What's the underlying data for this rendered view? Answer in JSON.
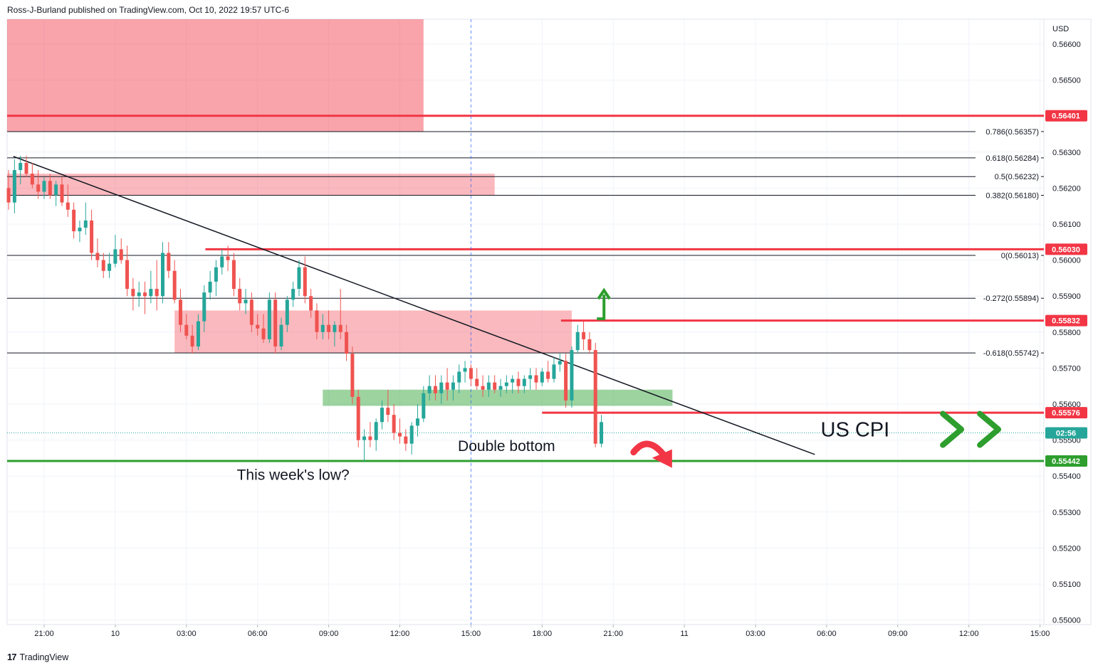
{
  "header": {
    "attribution": "Ross-J-Burland published on TradingView.com, Oct 10, 2022 19:57 UTC-6"
  },
  "footer": {
    "brand": "TradingView",
    "brand_mark": "17"
  },
  "colors": {
    "up": "#26a69a",
    "down": "#ef5350",
    "red_line": "#f23645",
    "green_line": "#2e9e2e",
    "red_zone": "rgba(242,54,69,0.45)",
    "pink_zone": "rgba(242,54,69,0.35)",
    "green_zone": "rgba(76,175,80,0.55)"
  },
  "chart_data": {
    "type": "candlestick",
    "currency": "USD",
    "price_axis": {
      "range": [
        0.5497,
        0.5671
      ],
      "ticks": [
        "0.56600",
        "0.56500",
        "0.56300",
        "0.56200",
        "0.56100",
        "0.56000",
        "0.55900",
        "0.55800",
        "0.55700",
        "0.55600",
        "0.55500",
        "0.55400",
        "0.55300",
        "0.55200",
        "0.55100",
        "0.55000"
      ]
    },
    "time_axis": {
      "ticks": [
        {
          "label": "21:00",
          "t": -3
        },
        {
          "label": "10",
          "t": 0
        },
        {
          "label": "03:00",
          "t": 3
        },
        {
          "label": "06:00",
          "t": 6
        },
        {
          "label": "09:00",
          "t": 9
        },
        {
          "label": "12:00",
          "t": 12
        },
        {
          "label": "15:00",
          "t": 15
        },
        {
          "label": "18:00",
          "t": 18
        },
        {
          "label": "21:00",
          "t": 21
        },
        {
          "label": "11",
          "t": 24
        },
        {
          "label": "03:00",
          "t": 27
        },
        {
          "label": "06:00",
          "t": 30
        },
        {
          "label": "09:00",
          "t": 33
        },
        {
          "label": "12:00",
          "t": 36
        },
        {
          "label": "15:00",
          "t": 39
        }
      ]
    },
    "price_labels": [
      {
        "value": 0.56401,
        "text": "0.56401",
        "color": "#f23645"
      },
      {
        "value": 0.5603,
        "text": "0.56030",
        "color": "#f23645"
      },
      {
        "value": 0.55832,
        "text": "0.55832",
        "color": "#f23645"
      },
      {
        "value": 0.55576,
        "text": "0.55576",
        "color": "#f23645"
      },
      {
        "value": 0.5552,
        "text": "02:56",
        "color": "#26a69a"
      },
      {
        "value": 0.55442,
        "text": "0.55442",
        "color": "#2e9e2e"
      }
    ],
    "fib_levels": [
      {
        "value": 0.56357,
        "text": "0.786(0.56357)"
      },
      {
        "value": 0.56284,
        "text": "0.618(0.56284)"
      },
      {
        "value": 0.56232,
        "text": "0.5(0.56232)"
      },
      {
        "value": 0.5618,
        "text": "0.382(0.56180)"
      },
      {
        "value": 0.56013,
        "text": "0(0.56013)"
      },
      {
        "value": 0.55894,
        "text": "-0.272(0.55894)"
      },
      {
        "value": 0.55742,
        "text": "-0.618(0.55742)"
      }
    ],
    "zones": [
      {
        "t0": -4.6,
        "t1": 13.0,
        "p0": 0.5671,
        "p1": 0.56357,
        "fill": "red_zone"
      },
      {
        "t0": -4.6,
        "t1": 16.0,
        "p0": 0.5624,
        "p1": 0.5618,
        "fill": "pink_zone"
      },
      {
        "t0": 2.5,
        "t1": 19.25,
        "p0": 0.5586,
        "p1": 0.55742,
        "fill": "pink_zone"
      },
      {
        "t0": 8.75,
        "t1": 23.5,
        "p0": 0.5564,
        "p1": 0.55595,
        "fill": "green_zone"
      }
    ],
    "horizontal_lines": [
      {
        "value": 0.56401,
        "t0": -4.6,
        "t1": 41.0,
        "color": "red_line",
        "width": 3
      },
      {
        "value": 0.5603,
        "t0": 3.8,
        "t1": 41.0,
        "color": "red_line",
        "width": 3
      },
      {
        "value": 0.55832,
        "t0": 18.8,
        "t1": 41.0,
        "color": "red_line",
        "width": 3
      },
      {
        "value": 0.55576,
        "t0": 18.0,
        "t1": 41.0,
        "color": "red_line",
        "width": 3
      },
      {
        "value": 0.55442,
        "t0": -4.6,
        "t1": 41.0,
        "color": "green_line",
        "width": 3
      }
    ],
    "trendline": {
      "t0": -4.3,
      "p0": 0.56288,
      "t1": 29.5,
      "p1": 0.5546
    },
    "session_marker_t": 15.0,
    "last_price": 0.5552,
    "annotations": [
      {
        "text": "Double bottom",
        "t": 16.5,
        "p": 0.5547,
        "size": 21,
        "key": "double_bottom"
      },
      {
        "text": "This week's low?",
        "t": 7.5,
        "p": 0.5539,
        "size": 21,
        "key": "weeks_low"
      },
      {
        "text": "US CPI",
        "t": 31.2,
        "p": 0.5551,
        "size": 29,
        "key": "us_cpi"
      }
    ],
    "candles": [
      [
        -4.5,
        0.562,
        0.5625,
        0.5614,
        0.5616
      ],
      [
        -4.25,
        0.5616,
        0.5628,
        0.5613,
        0.5625
      ],
      [
        -4.0,
        0.5625,
        0.5629,
        0.5621,
        0.5627
      ],
      [
        -3.75,
        0.5627,
        0.5629,
        0.5623,
        0.5624
      ],
      [
        -3.5,
        0.5624,
        0.5627,
        0.562,
        0.5621
      ],
      [
        -3.25,
        0.5621,
        0.5625,
        0.5617,
        0.5619
      ],
      [
        -3.0,
        0.5619,
        0.5623,
        0.5617,
        0.5622
      ],
      [
        -2.75,
        0.5622,
        0.5624,
        0.5617,
        0.5618
      ],
      [
        -2.5,
        0.5618,
        0.5622,
        0.5615,
        0.5621
      ],
      [
        -2.25,
        0.5621,
        0.5623,
        0.5615,
        0.5616
      ],
      [
        -2.0,
        0.5616,
        0.5621,
        0.5612,
        0.5614
      ],
      [
        -1.75,
        0.5614,
        0.5616,
        0.5606,
        0.5608
      ],
      [
        -1.5,
        0.5608,
        0.5611,
        0.5605,
        0.5609
      ],
      [
        -1.25,
        0.5609,
        0.5616,
        0.5607,
        0.5611
      ],
      [
        -1.0,
        0.5611,
        0.5614,
        0.56,
        0.5602
      ],
      [
        -0.75,
        0.5602,
        0.5606,
        0.5598,
        0.56
      ],
      [
        -0.5,
        0.56,
        0.5602,
        0.5595,
        0.5597
      ],
      [
        -0.25,
        0.5597,
        0.5602,
        0.5595,
        0.5599
      ],
      [
        0.0,
        0.5599,
        0.5607,
        0.5598,
        0.5603
      ],
      [
        0.25,
        0.5603,
        0.5606,
        0.5599,
        0.56
      ],
      [
        0.5,
        0.56,
        0.5604,
        0.559,
        0.5592
      ],
      [
        0.75,
        0.5592,
        0.5595,
        0.5586,
        0.559
      ],
      [
        1.0,
        0.559,
        0.5594,
        0.5587,
        0.5591
      ],
      [
        1.25,
        0.5591,
        0.5594,
        0.5585,
        0.559
      ],
      [
        1.5,
        0.559,
        0.5597,
        0.5588,
        0.5592
      ],
      [
        1.75,
        0.5592,
        0.56,
        0.5586,
        0.559
      ],
      [
        2.0,
        0.559,
        0.5605,
        0.5588,
        0.5602
      ],
      [
        2.25,
        0.5602,
        0.5605,
        0.5595,
        0.5597
      ],
      [
        2.5,
        0.5597,
        0.56,
        0.5588,
        0.5589
      ],
      [
        2.75,
        0.5589,
        0.5592,
        0.558,
        0.5582
      ],
      [
        3.0,
        0.5582,
        0.5585,
        0.5578,
        0.5579
      ],
      [
        3.25,
        0.5579,
        0.5582,
        0.5574,
        0.5576
      ],
      [
        3.5,
        0.5576,
        0.5585,
        0.5575,
        0.5583
      ],
      [
        3.75,
        0.5583,
        0.5593,
        0.558,
        0.5591
      ],
      [
        4.0,
        0.5591,
        0.5597,
        0.5589,
        0.5594
      ],
      [
        4.25,
        0.5594,
        0.56,
        0.559,
        0.5598
      ],
      [
        4.5,
        0.5598,
        0.5603,
        0.5596,
        0.5601
      ],
      [
        4.75,
        0.5601,
        0.5604,
        0.5597,
        0.56
      ],
      [
        5.0,
        0.56,
        0.5602,
        0.559,
        0.5592
      ],
      [
        5.25,
        0.5592,
        0.5595,
        0.5586,
        0.5588
      ],
      [
        5.5,
        0.5588,
        0.5592,
        0.5585,
        0.5589
      ],
      [
        5.75,
        0.5589,
        0.5591,
        0.558,
        0.5582
      ],
      [
        6.0,
        0.5582,
        0.5585,
        0.5579,
        0.5581
      ],
      [
        6.25,
        0.5581,
        0.5585,
        0.5577,
        0.5578
      ],
      [
        6.5,
        0.5578,
        0.5591,
        0.5577,
        0.5589
      ],
      [
        6.75,
        0.5589,
        0.5591,
        0.5574,
        0.5576
      ],
      [
        7.0,
        0.5576,
        0.5584,
        0.5575,
        0.5582
      ],
      [
        7.25,
        0.5582,
        0.559,
        0.558,
        0.5589
      ],
      [
        7.5,
        0.5589,
        0.5594,
        0.5587,
        0.5592
      ],
      [
        7.75,
        0.5592,
        0.56,
        0.559,
        0.5598
      ],
      [
        8.0,
        0.5598,
        0.5601,
        0.5588,
        0.559
      ],
      [
        8.25,
        0.559,
        0.5592,
        0.5584,
        0.5586
      ],
      [
        8.5,
        0.5586,
        0.5588,
        0.5578,
        0.558
      ],
      [
        8.75,
        0.558,
        0.5585,
        0.5578,
        0.5582
      ],
      [
        9.0,
        0.5582,
        0.5586,
        0.5578,
        0.558
      ],
      [
        9.25,
        0.558,
        0.5583,
        0.5576,
        0.5582
      ],
      [
        9.5,
        0.5582,
        0.5592,
        0.5578,
        0.558
      ],
      [
        9.75,
        0.558,
        0.5582,
        0.5572,
        0.5574
      ],
      [
        10.0,
        0.5574,
        0.5576,
        0.556,
        0.5562
      ],
      [
        10.25,
        0.5562,
        0.5564,
        0.5548,
        0.555
      ],
      [
        10.5,
        0.555,
        0.5553,
        0.5544,
        0.5551
      ],
      [
        10.75,
        0.5551,
        0.5555,
        0.5548,
        0.555
      ],
      [
        11.0,
        0.555,
        0.5556,
        0.5547,
        0.5555
      ],
      [
        11.25,
        0.5555,
        0.5561,
        0.5553,
        0.5559
      ],
      [
        11.5,
        0.5559,
        0.5564,
        0.5555,
        0.5557
      ],
      [
        11.75,
        0.5557,
        0.556,
        0.555,
        0.5552
      ],
      [
        12.0,
        0.5552,
        0.5556,
        0.5549,
        0.5551
      ],
      [
        12.25,
        0.5551,
        0.5553,
        0.5547,
        0.5549
      ],
      [
        12.5,
        0.5549,
        0.5555,
        0.5546,
        0.5554
      ],
      [
        12.75,
        0.5554,
        0.556,
        0.5551,
        0.5556
      ],
      [
        13.0,
        0.5556,
        0.5565,
        0.5555,
        0.5563
      ],
      [
        13.25,
        0.5563,
        0.5568,
        0.5561,
        0.5565
      ],
      [
        13.5,
        0.5565,
        0.5568,
        0.5561,
        0.5563
      ],
      [
        13.75,
        0.5563,
        0.5568,
        0.556,
        0.5566
      ],
      [
        14.0,
        0.5566,
        0.557,
        0.5561,
        0.5564
      ],
      [
        14.25,
        0.5564,
        0.5568,
        0.5561,
        0.5566
      ],
      [
        14.5,
        0.5566,
        0.5571,
        0.5563,
        0.5569
      ],
      [
        14.75,
        0.5569,
        0.5572,
        0.5566,
        0.557
      ],
      [
        15.0,
        0.557,
        0.5571,
        0.5565,
        0.5567
      ],
      [
        15.25,
        0.5567,
        0.557,
        0.5564,
        0.5565
      ],
      [
        15.5,
        0.5565,
        0.5568,
        0.5562,
        0.5564
      ],
      [
        15.75,
        0.5564,
        0.5568,
        0.5562,
        0.5566
      ],
      [
        16.0,
        0.5566,
        0.5568,
        0.5563,
        0.5564
      ],
      [
        16.25,
        0.5564,
        0.5567,
        0.5562,
        0.5565
      ],
      [
        16.5,
        0.5565,
        0.5568,
        0.5563,
        0.5566
      ],
      [
        16.75,
        0.5566,
        0.5568,
        0.5563,
        0.5567
      ],
      [
        17.0,
        0.5567,
        0.5569,
        0.5563,
        0.5565
      ],
      [
        17.25,
        0.5565,
        0.5568,
        0.5563,
        0.5567
      ],
      [
        17.5,
        0.5567,
        0.557,
        0.5564,
        0.5568
      ],
      [
        17.75,
        0.5568,
        0.557,
        0.5564,
        0.5566
      ],
      [
        18.0,
        0.5566,
        0.557,
        0.5565,
        0.5569
      ],
      [
        18.25,
        0.5569,
        0.5572,
        0.5566,
        0.5567
      ],
      [
        18.5,
        0.5567,
        0.5573,
        0.5566,
        0.5571
      ],
      [
        18.75,
        0.5571,
        0.5574,
        0.5569,
        0.5572
      ],
      [
        19.0,
        0.5572,
        0.5574,
        0.5559,
        0.5561
      ],
      [
        19.25,
        0.5561,
        0.5576,
        0.5559,
        0.5575
      ],
      [
        19.5,
        0.5575,
        0.5582,
        0.5574,
        0.558
      ],
      [
        19.75,
        0.558,
        0.5583,
        0.5575,
        0.5578
      ],
      [
        20.0,
        0.5578,
        0.558,
        0.5574,
        0.5575
      ],
      [
        20.25,
        0.5575,
        0.5577,
        0.5548,
        0.5549
      ],
      [
        20.5,
        0.5549,
        0.5557,
        0.5548,
        0.5555
      ]
    ]
  }
}
